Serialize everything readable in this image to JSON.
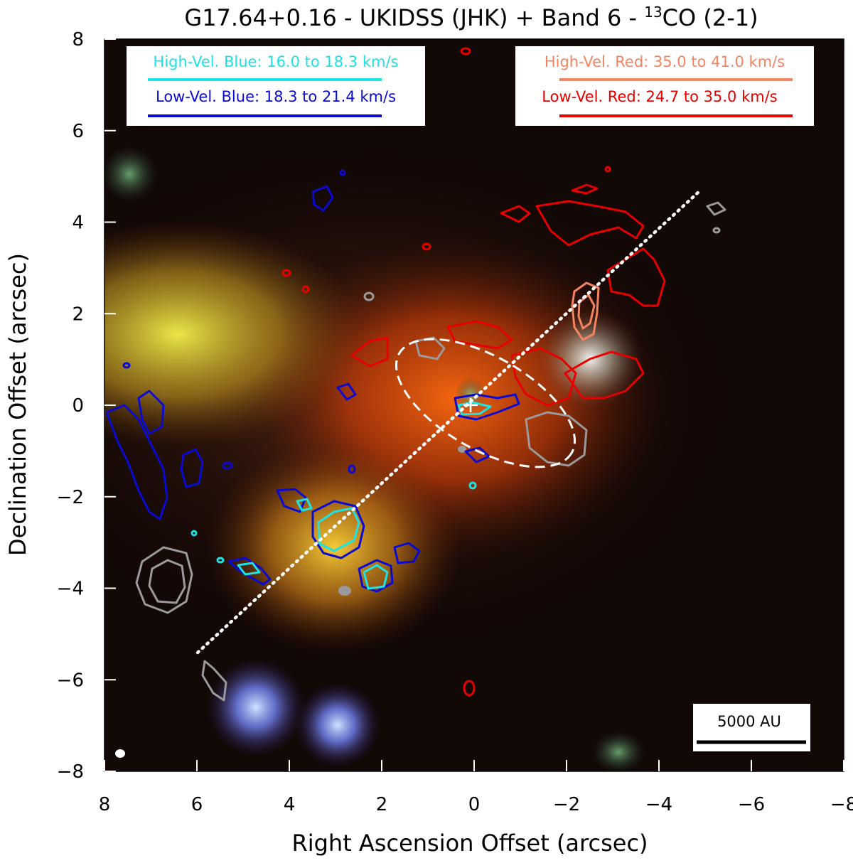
{
  "title": "G17.64+0.16 - UKIDSS (JHK) + Band 6 - ",
  "title_iso": "13",
  "title_tail": "CO (2-1)",
  "x_axis": {
    "label": "Right Ascension Offset (arcsec)",
    "ticks": [
      "8",
      "6",
      "4",
      "2",
      "0",
      "−2",
      "−4",
      "−6",
      "−8"
    ],
    "range": [
      8,
      -8
    ]
  },
  "y_axis": {
    "label": "Declination Offset (arcsec)",
    "ticks": [
      "8",
      "6",
      "4",
      "2",
      "0",
      "−2",
      "−4",
      "−6",
      "−8"
    ],
    "range": [
      -8,
      8
    ]
  },
  "legend_blue": {
    "high": "High-Vel. Blue: 16.0 to 18.3 km/s",
    "low": "Low-Vel. Blue: 18.3 to 21.4 km/s",
    "high_color": "#1ee3e3",
    "low_color": "#0a0ad0"
  },
  "legend_red": {
    "high": "High-Vel. Red: 35.0 to 41.0 km/s",
    "low": "Low-Vel. Red: 24.7 to 35.0 km/s",
    "high_color": "#f4845f",
    "low_color": "#e60000"
  },
  "scale_bar": {
    "label": "5000 AU"
  },
  "colors": {
    "continuum_contour": "#9a9a9a",
    "outflow_axis": "#ffffff",
    "background": "#120806"
  }
}
